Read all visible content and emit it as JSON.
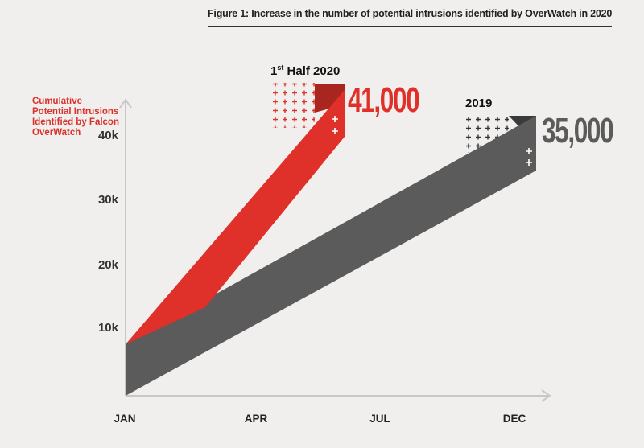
{
  "figure_title": "Figure 1: Increase in the number of potential intrusions identified by OverWatch in 2020",
  "colors": {
    "red": "#e0302a",
    "red_dark": "#a82520",
    "gray": "#5c5b5b",
    "gray_dark": "#3a3a3a",
    "axis": "#c8c8c8"
  },
  "chart_data": {
    "type": "area",
    "ylabel": "Cumulative Potential Intrusions Identified by Falcon OverWatch",
    "x_categories": [
      "JAN",
      "APR",
      "JUL",
      "DEC"
    ],
    "y_ticks": [
      "10k",
      "20k",
      "30k",
      "40k"
    ],
    "ylim": [
      0,
      45000
    ],
    "series": [
      {
        "name": "2019",
        "color": "#5c5b5b",
        "start": 0,
        "end": 35000,
        "value_label": "35,000"
      },
      {
        "name": "1st Half 2020",
        "color": "#e0302a",
        "start": 0,
        "end": 41000,
        "value_label": "41,000"
      }
    ]
  }
}
